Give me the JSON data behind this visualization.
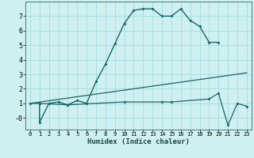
{
  "xlabel": "Humidex (Indice chaleur)",
  "bg_color": "#cff0f0",
  "grid_color": "#aadddd",
  "line_color": "#1a6666",
  "line1_x": [
    1,
    1,
    2,
    3,
    4,
    5,
    6,
    7,
    8,
    9,
    10,
    11,
    12,
    13,
    14,
    15,
    16,
    17,
    18,
    19,
    20
  ],
  "line1_y": [
    1.0,
    -0.3,
    1.0,
    1.1,
    0.9,
    1.2,
    1.0,
    2.5,
    3.7,
    5.1,
    6.5,
    7.4,
    7.5,
    7.5,
    7.0,
    7.0,
    7.5,
    6.7,
    6.3,
    5.2,
    5.2
  ],
  "line2_x": [
    0,
    23
  ],
  "line2_y": [
    1.0,
    3.1
  ],
  "line3_x": [
    0,
    1,
    4,
    10,
    14,
    15,
    19,
    20,
    21,
    22,
    23
  ],
  "line3_y": [
    1.0,
    1.0,
    0.9,
    1.1,
    1.1,
    1.1,
    1.3,
    1.7,
    -0.5,
    1.0,
    0.8
  ],
  "xlim": [
    -0.5,
    23.5
  ],
  "ylim": [
    -0.8,
    8.0
  ],
  "xticks": [
    0,
    1,
    2,
    3,
    4,
    5,
    6,
    7,
    8,
    9,
    10,
    11,
    12,
    13,
    14,
    15,
    16,
    17,
    18,
    19,
    20,
    21,
    22,
    23
  ],
  "yticks": [
    0,
    1,
    2,
    3,
    4,
    5,
    6,
    7
  ]
}
